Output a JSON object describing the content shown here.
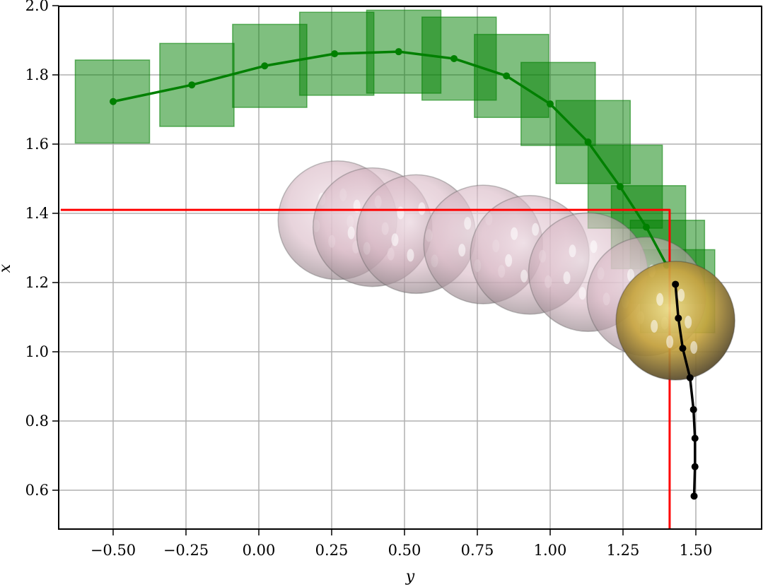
{
  "chart_data": {
    "type": "scatter",
    "title": "",
    "xlabel": "y",
    "ylabel": "x",
    "xlim": [
      -0.68,
      1.57
    ],
    "ylim": [
      0.485,
      2.0
    ],
    "grid": true,
    "x_ticks": [
      "−0.50",
      "−0.25",
      "0.00",
      "0.25",
      "0.50",
      "0.75",
      "1.00",
      "1.25",
      "1.50"
    ],
    "x_tick_values": [
      -0.5,
      -0.25,
      0.0,
      0.25,
      0.5,
      0.75,
      1.0,
      1.25,
      1.5
    ],
    "y_ticks": [
      "0.6",
      "0.8",
      "1.0",
      "1.2",
      "1.4",
      "1.6",
      "1.8",
      "2.0"
    ],
    "y_tick_values": [
      0.6,
      0.8,
      1.0,
      1.2,
      1.4,
      1.6,
      1.8,
      2.0
    ],
    "series": [
      {
        "name": "green trajectory",
        "type": "line+markers",
        "color": "#008000",
        "points": [
          [
            -0.5,
            1.723
          ],
          [
            -0.23,
            1.771
          ],
          [
            0.02,
            1.826
          ],
          [
            0.26,
            1.861
          ],
          [
            0.48,
            1.867
          ],
          [
            0.67,
            1.847
          ],
          [
            0.85,
            1.797
          ],
          [
            1.0,
            1.716
          ],
          [
            1.13,
            1.606
          ],
          [
            1.24,
            1.477
          ],
          [
            1.33,
            1.36
          ],
          [
            1.4,
            1.25
          ]
        ]
      },
      {
        "name": "green uncertainty boxes",
        "type": "rect",
        "color": "#008000",
        "alpha": 0.5,
        "boxes": [
          {
            "x0": -0.63,
            "x1": -0.375,
            "y0": 1.603,
            "y1": 1.843
          },
          {
            "x0": -0.34,
            "x1": -0.085,
            "y0": 1.651,
            "y1": 1.891
          },
          {
            "x0": -0.09,
            "x1": 0.165,
            "y0": 1.706,
            "y1": 1.946
          },
          {
            "x0": 0.14,
            "x1": 0.395,
            "y0": 1.741,
            "y1": 1.981
          },
          {
            "x0": 0.37,
            "x1": 0.625,
            "y0": 1.747,
            "y1": 1.987
          },
          {
            "x0": 0.56,
            "x1": 0.815,
            "y0": 1.727,
            "y1": 1.967
          },
          {
            "x0": 0.74,
            "x1": 0.995,
            "y0": 1.677,
            "y1": 1.917
          },
          {
            "x0": 0.9,
            "x1": 1.155,
            "y0": 1.596,
            "y1": 1.836
          },
          {
            "x0": 1.02,
            "x1": 1.275,
            "y0": 1.486,
            "y1": 1.726
          },
          {
            "x0": 1.13,
            "x1": 1.385,
            "y0": 1.357,
            "y1": 1.597
          },
          {
            "x0": 1.21,
            "x1": 1.465,
            "y0": 1.24,
            "y1": 1.48
          },
          {
            "x0": 1.275,
            "x1": 1.53,
            "y0": 1.14,
            "y1": 1.38
          },
          {
            "x0": 1.31,
            "x1": 1.565,
            "y0": 1.055,
            "y1": 1.295
          }
        ]
      },
      {
        "name": "black trajectory",
        "type": "line+markers",
        "color": "#000000",
        "points": [
          [
            1.43,
            1.195
          ],
          [
            1.44,
            1.097
          ],
          [
            1.455,
            1.01
          ],
          [
            1.48,
            0.925
          ],
          [
            1.492,
            0.833
          ],
          [
            1.497,
            0.75
          ],
          [
            1.497,
            0.668
          ],
          [
            1.494,
            0.583
          ]
        ]
      },
      {
        "name": "pink spheres",
        "type": "sphere",
        "color": "#d9b8c4",
        "alpha": 0.55,
        "radius_px": 84,
        "centers": [
          [
            0.27,
            1.38
          ],
          [
            0.39,
            1.36
          ],
          [
            0.54,
            1.34
          ],
          [
            0.77,
            1.31
          ],
          [
            0.93,
            1.28
          ],
          [
            1.13,
            1.23
          ],
          [
            1.33,
            1.16
          ]
        ]
      },
      {
        "name": "gold sphere",
        "type": "sphere",
        "color": "#c9a83a",
        "alpha": 0.85,
        "radius_px": 84,
        "centers": [
          [
            1.43,
            1.09
          ]
        ]
      },
      {
        "name": "red boundary",
        "type": "line",
        "color": "#ff0000",
        "points": [
          [
            -0.68,
            1.41
          ],
          [
            1.41,
            1.41
          ],
          [
            1.41,
            0.485
          ]
        ]
      }
    ]
  }
}
